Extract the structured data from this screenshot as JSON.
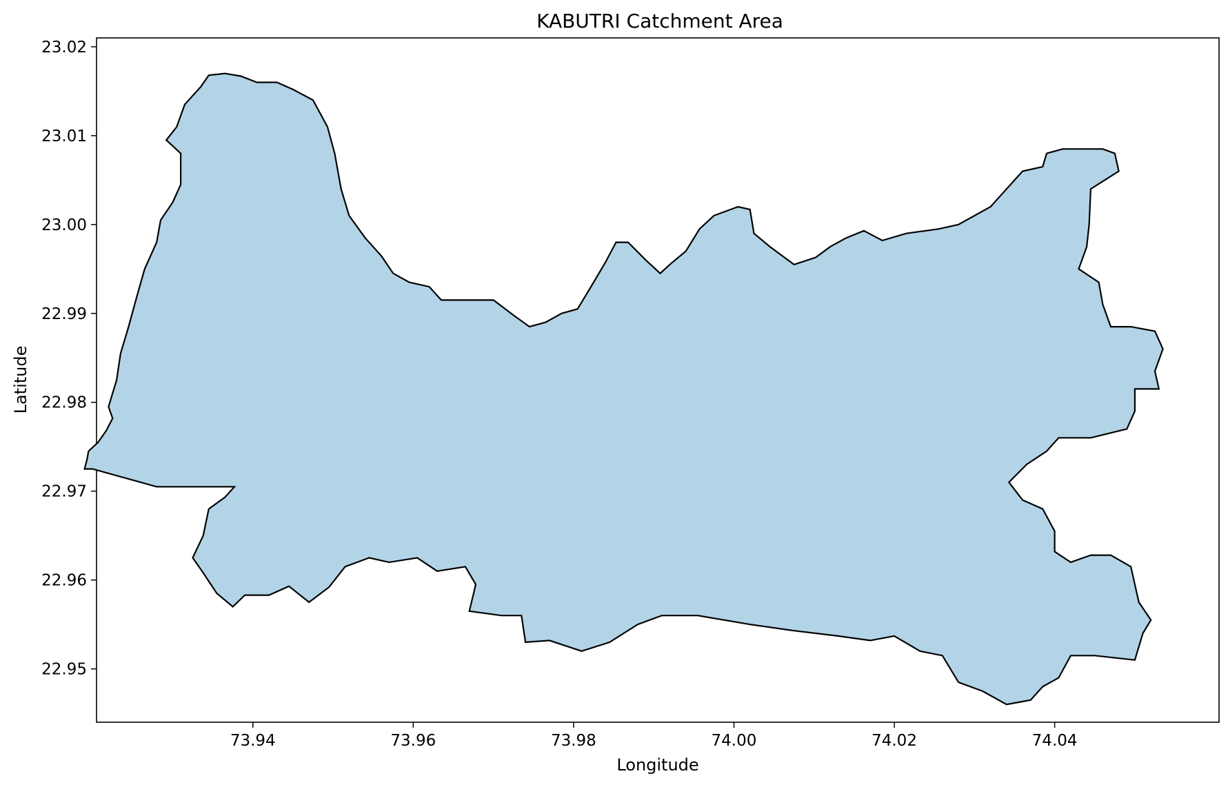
{
  "chart_data": {
    "type": "map",
    "title": "KABUTRI Catchment Area",
    "xlabel": "Longitude",
    "ylabel": "Latitude",
    "xlim": [
      73.9205,
      74.0605
    ],
    "ylim": [
      22.944,
      23.021
    ],
    "grid": false,
    "legend": "none",
    "fill_color": "#b3d4e7",
    "edge_color": "#000000",
    "xticks": [
      {
        "value": 73.94,
        "label": "73.94"
      },
      {
        "value": 73.96,
        "label": "73.96"
      },
      {
        "value": 73.98,
        "label": "73.98"
      },
      {
        "value": 74.0,
        "label": "74.00"
      },
      {
        "value": 74.02,
        "label": "74.02"
      },
      {
        "value": 74.04,
        "label": "74.04"
      }
    ],
    "yticks": [
      {
        "value": 22.95,
        "label": "22.95"
      },
      {
        "value": 22.96,
        "label": "22.96"
      },
      {
        "value": 22.97,
        "label": "22.97"
      },
      {
        "value": 22.98,
        "label": "22.98"
      },
      {
        "value": 22.99,
        "label": "22.99"
      },
      {
        "value": 23.0,
        "label": "23.00"
      },
      {
        "value": 23.01,
        "label": "23.01"
      },
      {
        "value": 23.02,
        "label": "23.02"
      }
    ],
    "boundary": [
      [
        73.928,
        22.9705
      ],
      [
        73.9377,
        22.9705
      ],
      [
        73.9365,
        22.9693
      ],
      [
        73.9345,
        22.968
      ],
      [
        73.9338,
        22.965
      ],
      [
        73.9325,
        22.9625
      ],
      [
        73.9338,
        22.9608
      ],
      [
        73.9355,
        22.9585
      ],
      [
        73.9375,
        22.957
      ],
      [
        73.939,
        22.9583
      ],
      [
        73.942,
        22.9583
      ],
      [
        73.9445,
        22.9593
      ],
      [
        73.947,
        22.9575
      ],
      [
        73.9495,
        22.9592
      ],
      [
        73.9515,
        22.9615
      ],
      [
        73.9545,
        22.9625
      ],
      [
        73.957,
        22.962
      ],
      [
        73.9605,
        22.9625
      ],
      [
        73.963,
        22.961
      ],
      [
        73.9665,
        22.9615
      ],
      [
        73.9678,
        22.9595
      ],
      [
        73.967,
        22.9565
      ],
      [
        73.971,
        22.956
      ],
      [
        73.9735,
        22.956
      ],
      [
        73.974,
        22.953
      ],
      [
        73.977,
        22.9532
      ],
      [
        73.981,
        22.952
      ],
      [
        73.9845,
        22.953
      ],
      [
        73.988,
        22.955
      ],
      [
        73.991,
        22.956
      ],
      [
        73.9955,
        22.956
      ],
      [
        74.002,
        22.955
      ],
      [
        74.0075,
        22.9543
      ],
      [
        74.013,
        22.9537
      ],
      [
        74.017,
        22.9532
      ],
      [
        74.02,
        22.9537
      ],
      [
        74.0232,
        22.952
      ],
      [
        74.026,
        22.9515
      ],
      [
        74.028,
        22.9485
      ],
      [
        74.031,
        22.9475
      ],
      [
        74.034,
        22.946
      ],
      [
        74.037,
        22.9465
      ],
      [
        74.0385,
        22.948
      ],
      [
        74.0405,
        22.949
      ],
      [
        74.042,
        22.9515
      ],
      [
        74.045,
        22.9515
      ],
      [
        74.05,
        22.951
      ],
      [
        74.051,
        22.954
      ],
      [
        74.052,
        22.9555
      ],
      [
        74.0505,
        22.9575
      ],
      [
        74.0495,
        22.9615
      ],
      [
        74.047,
        22.9628
      ],
      [
        74.0445,
        22.9628
      ],
      [
        74.042,
        22.962
      ],
      [
        74.04,
        22.9632
      ],
      [
        74.04,
        22.9655
      ],
      [
        74.0385,
        22.968
      ],
      [
        74.036,
        22.969
      ],
      [
        74.0343,
        22.971
      ],
      [
        74.0365,
        22.973
      ],
      [
        74.039,
        22.9745
      ],
      [
        74.0405,
        22.976
      ],
      [
        74.0445,
        22.976
      ],
      [
        74.049,
        22.977
      ],
      [
        74.05,
        22.979
      ],
      [
        74.05,
        22.9815
      ],
      [
        74.053,
        22.9815
      ],
      [
        74.0525,
        22.9835
      ],
      [
        74.0535,
        22.986
      ],
      [
        74.0525,
        22.988
      ],
      [
        74.0495,
        22.9885
      ],
      [
        74.047,
        22.9885
      ],
      [
        74.046,
        22.991
      ],
      [
        74.0455,
        22.9935
      ],
      [
        74.043,
        22.995
      ],
      [
        74.044,
        22.9975
      ],
      [
        74.0443,
        23.0
      ],
      [
        74.0445,
        23.004
      ],
      [
        74.048,
        23.006
      ],
      [
        74.0475,
        23.008
      ],
      [
        74.046,
        23.0085
      ],
      [
        74.041,
        23.0085
      ],
      [
        74.039,
        23.008
      ],
      [
        74.0385,
        23.0065
      ],
      [
        74.036,
        23.006
      ],
      [
        74.034,
        23.004
      ],
      [
        74.032,
        23.002
      ],
      [
        74.028,
        23.0
      ],
      [
        74.0255,
        22.9995
      ],
      [
        74.0215,
        22.999
      ],
      [
        74.0185,
        22.9982
      ],
      [
        74.0162,
        22.9993
      ],
      [
        74.014,
        22.9985
      ],
      [
        74.012,
        22.9975
      ],
      [
        74.0102,
        22.9963
      ],
      [
        74.0075,
        22.9955
      ],
      [
        74.0045,
        22.9975
      ],
      [
        74.0025,
        22.999
      ],
      [
        74.002,
        23.0017
      ],
      [
        74.0005,
        23.002
      ],
      [
        73.9975,
        23.001
      ],
      [
        73.9957,
        22.9995
      ],
      [
        73.994,
        22.997
      ],
      [
        73.992,
        22.9955
      ],
      [
        73.9908,
        22.9945
      ],
      [
        73.989,
        22.996
      ],
      [
        73.9868,
        22.998
      ],
      [
        73.9853,
        22.998
      ],
      [
        73.984,
        22.9958
      ],
      [
        73.9825,
        22.9935
      ],
      [
        73.9805,
        22.9905
      ],
      [
        73.9785,
        22.99
      ],
      [
        73.9765,
        22.989
      ],
      [
        73.9745,
        22.9885
      ],
      [
        73.9725,
        22.9898
      ],
      [
        73.97,
        22.9915
      ],
      [
        73.9665,
        22.9915
      ],
      [
        73.9635,
        22.9915
      ],
      [
        73.962,
        22.993
      ],
      [
        73.9595,
        22.9935
      ],
      [
        73.9575,
        22.9945
      ],
      [
        73.956,
        22.9965
      ],
      [
        73.954,
        22.9985
      ],
      [
        73.952,
        23.001
      ],
      [
        73.951,
        23.004
      ],
      [
        73.9502,
        23.008
      ],
      [
        73.9493,
        23.011
      ],
      [
        73.9475,
        23.014
      ],
      [
        73.945,
        23.0152
      ],
      [
        73.943,
        23.016
      ],
      [
        73.9405,
        23.016
      ],
      [
        73.9385,
        23.0167
      ],
      [
        73.9365,
        23.017
      ],
      [
        73.9345,
        23.0168
      ],
      [
        73.9335,
        23.0155
      ],
      [
        73.9315,
        23.0135
      ],
      [
        73.9305,
        23.011
      ],
      [
        73.9292,
        23.0095
      ],
      [
        73.931,
        23.008
      ],
      [
        73.931,
        23.0045
      ],
      [
        73.93,
        23.0025
      ],
      [
        73.9285,
        23.0005
      ],
      [
        73.928,
        22.998
      ],
      [
        73.9265,
        22.995
      ],
      [
        73.9255,
        22.9918
      ],
      [
        73.9245,
        22.9885
      ],
      [
        73.9235,
        22.9855
      ],
      [
        73.923,
        22.9825
      ],
      [
        73.922,
        22.9795
      ],
      [
        73.9225,
        22.9782
      ],
      [
        73.9217,
        22.9768
      ],
      [
        73.9207,
        22.9755
      ],
      [
        73.9195,
        22.9745
      ],
      [
        73.9193,
        22.9735
      ],
      [
        73.919,
        22.9725
      ],
      [
        73.92,
        22.9725
      ]
    ]
  }
}
